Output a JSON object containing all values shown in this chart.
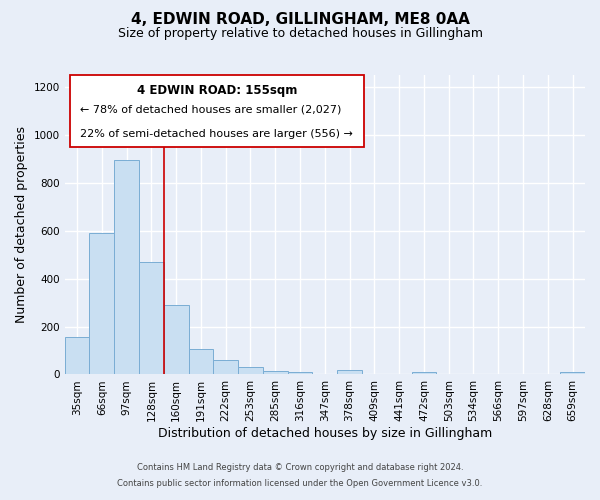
{
  "title": "4, EDWIN ROAD, GILLINGHAM, ME8 0AA",
  "subtitle": "Size of property relative to detached houses in Gillingham",
  "xlabel": "Distribution of detached houses by size in Gillingham",
  "ylabel": "Number of detached properties",
  "footnote1": "Contains HM Land Registry data © Crown copyright and database right 2024.",
  "footnote2": "Contains public sector information licensed under the Open Government Licence v3.0.",
  "bar_labels": [
    "35sqm",
    "66sqm",
    "97sqm",
    "128sqm",
    "160sqm",
    "191sqm",
    "222sqm",
    "253sqm",
    "285sqm",
    "316sqm",
    "347sqm",
    "378sqm",
    "409sqm",
    "441sqm",
    "472sqm",
    "503sqm",
    "534sqm",
    "566sqm",
    "597sqm",
    "628sqm",
    "659sqm"
  ],
  "bar_values": [
    155,
    590,
    895,
    470,
    290,
    105,
    62,
    30,
    15,
    10,
    0,
    20,
    0,
    0,
    12,
    0,
    0,
    0,
    0,
    0,
    10
  ],
  "bar_color": "#c9dff2",
  "bar_edge_color": "#7aadd4",
  "vline_x": 4,
  "vline_color": "#cc0000",
  "annotation_title": "4 EDWIN ROAD: 155sqm",
  "annotation_line1": "← 78% of detached houses are smaller (2,027)",
  "annotation_line2": "22% of semi-detached houses are larger (556) →",
  "annotation_box_color": "#ffffff",
  "annotation_border_color": "#cc0000",
  "ylim": [
    0,
    1250
  ],
  "yticks": [
    0,
    200,
    400,
    600,
    800,
    1000,
    1200
  ],
  "bg_color": "#e8eef8",
  "plot_bg_color": "#e8eef8",
  "grid_color": "#ffffff",
  "title_fontsize": 11,
  "subtitle_fontsize": 9,
  "axis_label_fontsize": 9,
  "tick_fontsize": 7.5,
  "annot_title_fontsize": 8.5,
  "annot_text_fontsize": 8,
  "footnote_fontsize": 6
}
